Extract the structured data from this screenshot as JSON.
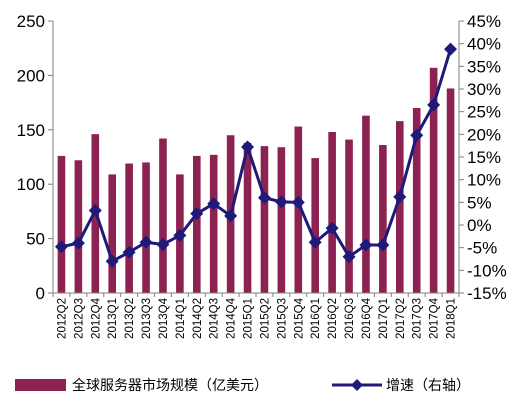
{
  "chart_data": {
    "type": "bar",
    "categories": [
      "2012Q2",
      "2012Q3",
      "2012Q4",
      "2013Q1",
      "2013Q2",
      "2013Q3",
      "2013Q4",
      "2014Q1",
      "2014Q2",
      "2014Q3",
      "2014Q4",
      "2015Q1",
      "2015Q2",
      "2015Q3",
      "2015Q4",
      "2016Q1",
      "2016Q2",
      "2016Q3",
      "2016Q4",
      "2017Q1",
      "2017Q2",
      "2017Q3",
      "2017Q4",
      "2018Q1"
    ],
    "series": [
      {
        "name": "全球服务器市场规模（亿美元）",
        "type": "bar",
        "axis": "left",
        "color": "#8B2252",
        "values": [
          126,
          122,
          146,
          109,
          119,
          120,
          142,
          109,
          126,
          127,
          145,
          138,
          135,
          134,
          153,
          124,
          148,
          141,
          163,
          136,
          158,
          170,
          207,
          188
        ]
      },
      {
        "name": "增速（右轴）",
        "type": "line",
        "axis": "right",
        "color": "#1F1A7A",
        "values": [
          -4.8,
          -4.0,
          3.2,
          -8.0,
          -6.0,
          -3.8,
          -4.3,
          -2.3,
          2.5,
          4.7,
          2.0,
          17.2,
          6.0,
          5.1,
          5.0,
          -3.8,
          -0.7,
          -7.0,
          -4.4,
          -4.4,
          6.2,
          19.8,
          26.5,
          38.8
        ]
      }
    ],
    "left_axis": {
      "ylim": [
        0,
        250
      ],
      "ticks": [
        "0",
        "50",
        "100",
        "150",
        "200",
        "250"
      ]
    },
    "right_axis": {
      "ylim": [
        -15,
        45
      ],
      "ticks": [
        "-15%",
        "-10%",
        "-5%",
        "0%",
        "5%",
        "10%",
        "15%",
        "20%",
        "25%",
        "30%",
        "35%",
        "40%",
        "45%"
      ]
    },
    "grid": false,
    "legend": "bottom"
  }
}
